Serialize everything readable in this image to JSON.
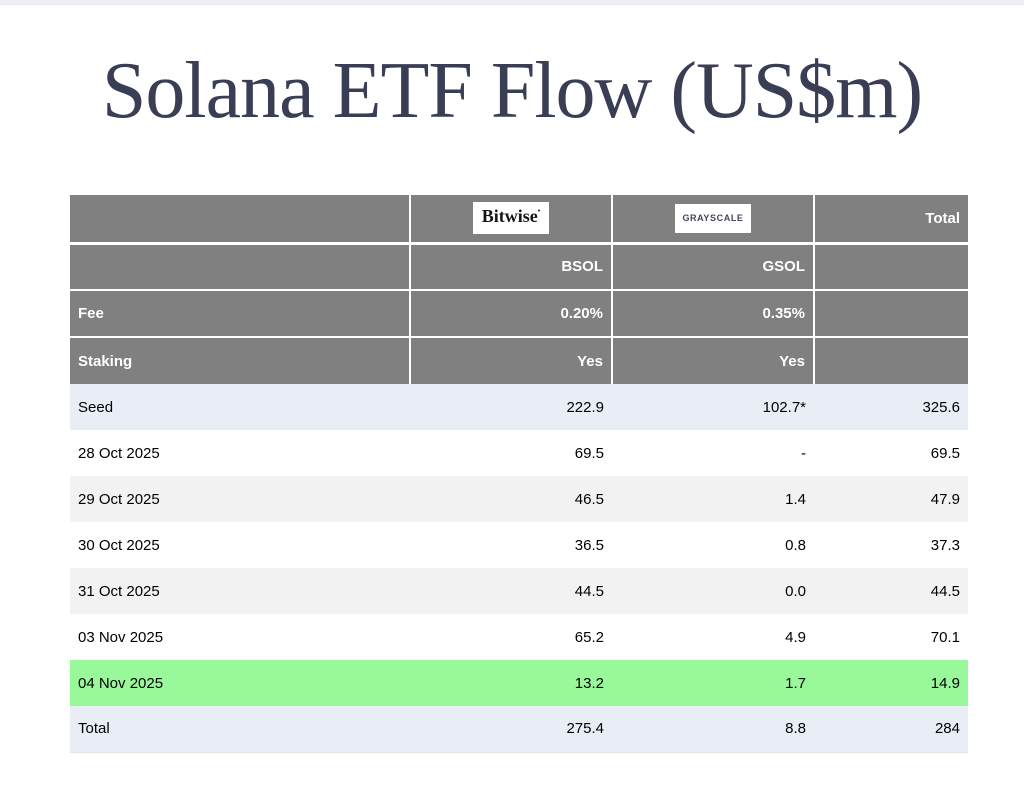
{
  "page": {
    "title": "Solana ETF Flow (US$m)"
  },
  "colors": {
    "title_text": "#3a3e54",
    "header_bg": "#808080",
    "header_text": "#ffffff",
    "seed_total_row_bg": "#e8edf6",
    "stripe_row_bg": "#f2f2f2",
    "highlight_row_bg": "#99f899",
    "body_text": "#000000"
  },
  "table": {
    "providers": [
      {
        "name": "Bitwise",
        "logo_text": "Bitwise",
        "logo_mark": "•",
        "ticker": "BSOL",
        "fee": "0.20%",
        "staking": "Yes"
      },
      {
        "name": "Grayscale",
        "logo_text": "GRAYSCALE",
        "ticker": "GSOL",
        "fee": "0.35%",
        "staking": "Yes"
      }
    ],
    "total_header": "Total",
    "fee_label": "Fee",
    "staking_label": "Staking",
    "rows": [
      {
        "label": "Seed",
        "bsol": "222.9",
        "gsol": "102.7*",
        "total": "325.6",
        "style": "blue"
      },
      {
        "label": "28 Oct 2025",
        "bsol": "69.5",
        "gsol": "-",
        "total": "69.5",
        "style": "white"
      },
      {
        "label": "29 Oct 2025",
        "bsol": "46.5",
        "gsol": "1.4",
        "total": "47.9",
        "style": "gray"
      },
      {
        "label": "30 Oct 2025",
        "bsol": "36.5",
        "gsol": "0.8",
        "total": "37.3",
        "style": "white"
      },
      {
        "label": "31 Oct 2025",
        "bsol": "44.5",
        "gsol": "0.0",
        "total": "44.5",
        "style": "gray"
      },
      {
        "label": "03 Nov 2025",
        "bsol": "65.2",
        "gsol": "4.9",
        "total": "70.1",
        "style": "white"
      },
      {
        "label": "04 Nov 2025",
        "bsol": "13.2",
        "gsol": "1.7",
        "total": "14.9",
        "style": "green"
      },
      {
        "label": "Total",
        "bsol": "275.4",
        "gsol": "8.8",
        "total": "284",
        "style": "blue"
      }
    ]
  },
  "chart_data": {
    "type": "table",
    "title": "Solana ETF Flow (US$m)",
    "columns": [
      "",
      "BSOL (Bitwise)",
      "GSOL (Grayscale)",
      "Total"
    ],
    "fees": {
      "BSOL": "0.20%",
      "GSOL": "0.35%"
    },
    "staking": {
      "BSOL": "Yes",
      "GSOL": "Yes"
    },
    "rows": [
      [
        "Seed",
        222.9,
        102.7,
        325.6
      ],
      [
        "28 Oct 2025",
        69.5,
        null,
        69.5
      ],
      [
        "29 Oct 2025",
        46.5,
        1.4,
        47.9
      ],
      [
        "30 Oct 2025",
        36.5,
        0.8,
        37.3
      ],
      [
        "31 Oct 2025",
        44.5,
        0.0,
        44.5
      ],
      [
        "03 Nov 2025",
        65.2,
        4.9,
        70.1
      ],
      [
        "04 Nov 2025",
        13.2,
        1.7,
        14.9
      ],
      [
        "Total",
        275.4,
        8.8,
        284
      ]
    ]
  }
}
